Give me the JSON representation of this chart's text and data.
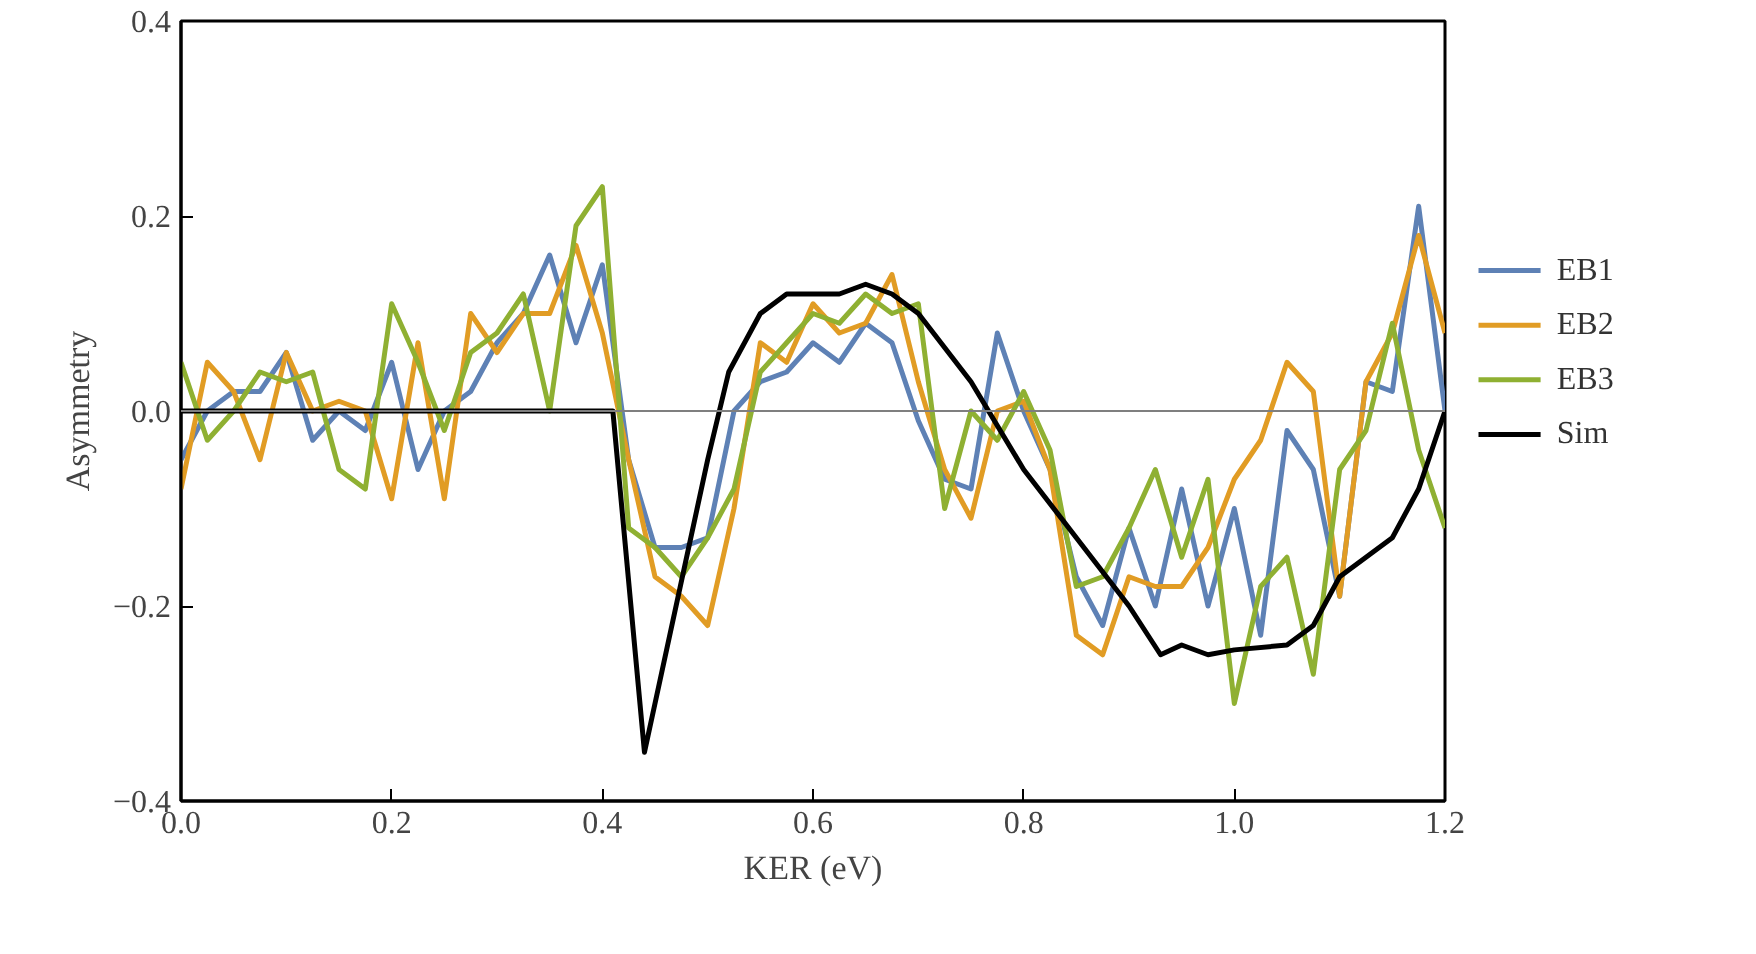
{
  "chart_data": {
    "type": "line",
    "xlabel": "KER (eV)",
    "ylabel": "Asymmetry",
    "x": [
      0,
      0.025,
      0.05,
      0.075,
      0.1,
      0.125,
      0.15,
      0.175,
      0.2,
      0.225,
      0.25,
      0.275,
      0.3,
      0.325,
      0.35,
      0.375,
      0.4,
      0.425,
      0.45,
      0.475,
      0.5,
      0.525,
      0.55,
      0.575,
      0.6,
      0.625,
      0.65,
      0.675,
      0.7,
      0.725,
      0.75,
      0.775,
      0.8,
      0.825,
      0.85,
      0.875,
      0.9,
      0.925,
      0.95,
      0.975,
      1.0,
      1.025,
      1.05,
      1.075,
      1.1,
      1.125,
      1.15,
      1.175,
      1.2
    ],
    "series": [
      {
        "name": "EB1",
        "color": "#5e81b5",
        "values": [
          -0.05,
          0.0,
          0.02,
          0.02,
          0.06,
          -0.03,
          0.0,
          -0.02,
          0.05,
          -0.06,
          0.0,
          0.02,
          0.07,
          0.1,
          0.16,
          0.07,
          0.15,
          -0.05,
          -0.14,
          -0.14,
          -0.13,
          0.0,
          0.03,
          0.04,
          0.07,
          0.05,
          0.09,
          0.07,
          -0.01,
          -0.07,
          -0.08,
          0.08,
          0.0,
          -0.06,
          -0.17,
          -0.22,
          -0.12,
          -0.2,
          -0.08,
          -0.2,
          -0.1,
          -0.23,
          -0.02,
          -0.06,
          -0.19,
          0.03,
          0.02,
          0.21,
          0.0
        ]
      },
      {
        "name": "EB2",
        "color": "#e19c24",
        "values": [
          -0.08,
          0.05,
          0.02,
          -0.05,
          0.06,
          0.0,
          0.01,
          0.0,
          -0.09,
          0.07,
          -0.09,
          0.1,
          0.06,
          0.1,
          0.1,
          0.17,
          0.08,
          -0.05,
          -0.17,
          -0.19,
          -0.22,
          -0.1,
          0.07,
          0.05,
          0.11,
          0.08,
          0.09,
          0.14,
          0.03,
          -0.06,
          -0.11,
          0.0,
          0.01,
          -0.06,
          -0.23,
          -0.25,
          -0.17,
          -0.18,
          -0.18,
          -0.14,
          -0.07,
          -0.03,
          0.05,
          0.02,
          -0.19,
          0.03,
          0.08,
          0.18,
          0.08
        ]
      },
      {
        "name": "EB3",
        "color": "#8fb032",
        "values": [
          0.05,
          -0.03,
          0.0,
          0.04,
          0.03,
          0.04,
          -0.06,
          -0.08,
          0.11,
          0.05,
          -0.02,
          0.06,
          0.08,
          0.12,
          0.0,
          0.19,
          0.23,
          -0.12,
          -0.14,
          -0.17,
          -0.13,
          -0.08,
          0.04,
          0.07,
          0.1,
          0.09,
          0.12,
          0.1,
          0.11,
          -0.1,
          0.0,
          -0.03,
          0.02,
          -0.04,
          -0.18,
          -0.17,
          -0.12,
          -0.06,
          -0.15,
          -0.07,
          -0.3,
          -0.18,
          -0.15,
          -0.27,
          -0.06,
          -0.02,
          0.09,
          -0.04,
          -0.12
        ]
      },
      {
        "name": "Sim",
        "color": "#000000",
        "x": [
          0,
          0.41,
          0.44,
          0.47,
          0.5,
          0.52,
          0.55,
          0.575,
          0.6,
          0.625,
          0.65,
          0.675,
          0.7,
          0.75,
          0.8,
          0.85,
          0.9,
          0.93,
          0.95,
          0.975,
          1.0,
          1.05,
          1.075,
          1.1,
          1.125,
          1.15,
          1.175,
          1.2
        ],
        "values": [
          0,
          0,
          -0.35,
          -0.2,
          -0.05,
          0.04,
          0.1,
          0.12,
          0.12,
          0.12,
          0.13,
          0.12,
          0.1,
          0.03,
          -0.06,
          -0.13,
          -0.2,
          -0.25,
          -0.24,
          -0.25,
          -0.245,
          -0.24,
          -0.22,
          -0.17,
          -0.15,
          -0.13,
          -0.08,
          0.0
        ]
      }
    ],
    "xlim": [
      0,
      1.2
    ],
    "ylim": [
      -0.4,
      0.4
    ],
    "xticks": [
      {
        "value": 0,
        "label": "0.0"
      },
      0.2,
      0.4,
      0.6,
      0.8,
      {
        "value": 1.0,
        "label": "1.0"
      },
      1.2
    ],
    "yticks": [
      -0.4,
      -0.2,
      {
        "value": 0,
        "label": "0.0"
      },
      0.2,
      0.4
    ],
    "ref_lines": [
      {
        "axis": "y",
        "value": 0,
        "color": "#7f7f7f"
      }
    ],
    "grid": false,
    "legend": "right",
    "line_style": "solid",
    "marker": "none"
  }
}
